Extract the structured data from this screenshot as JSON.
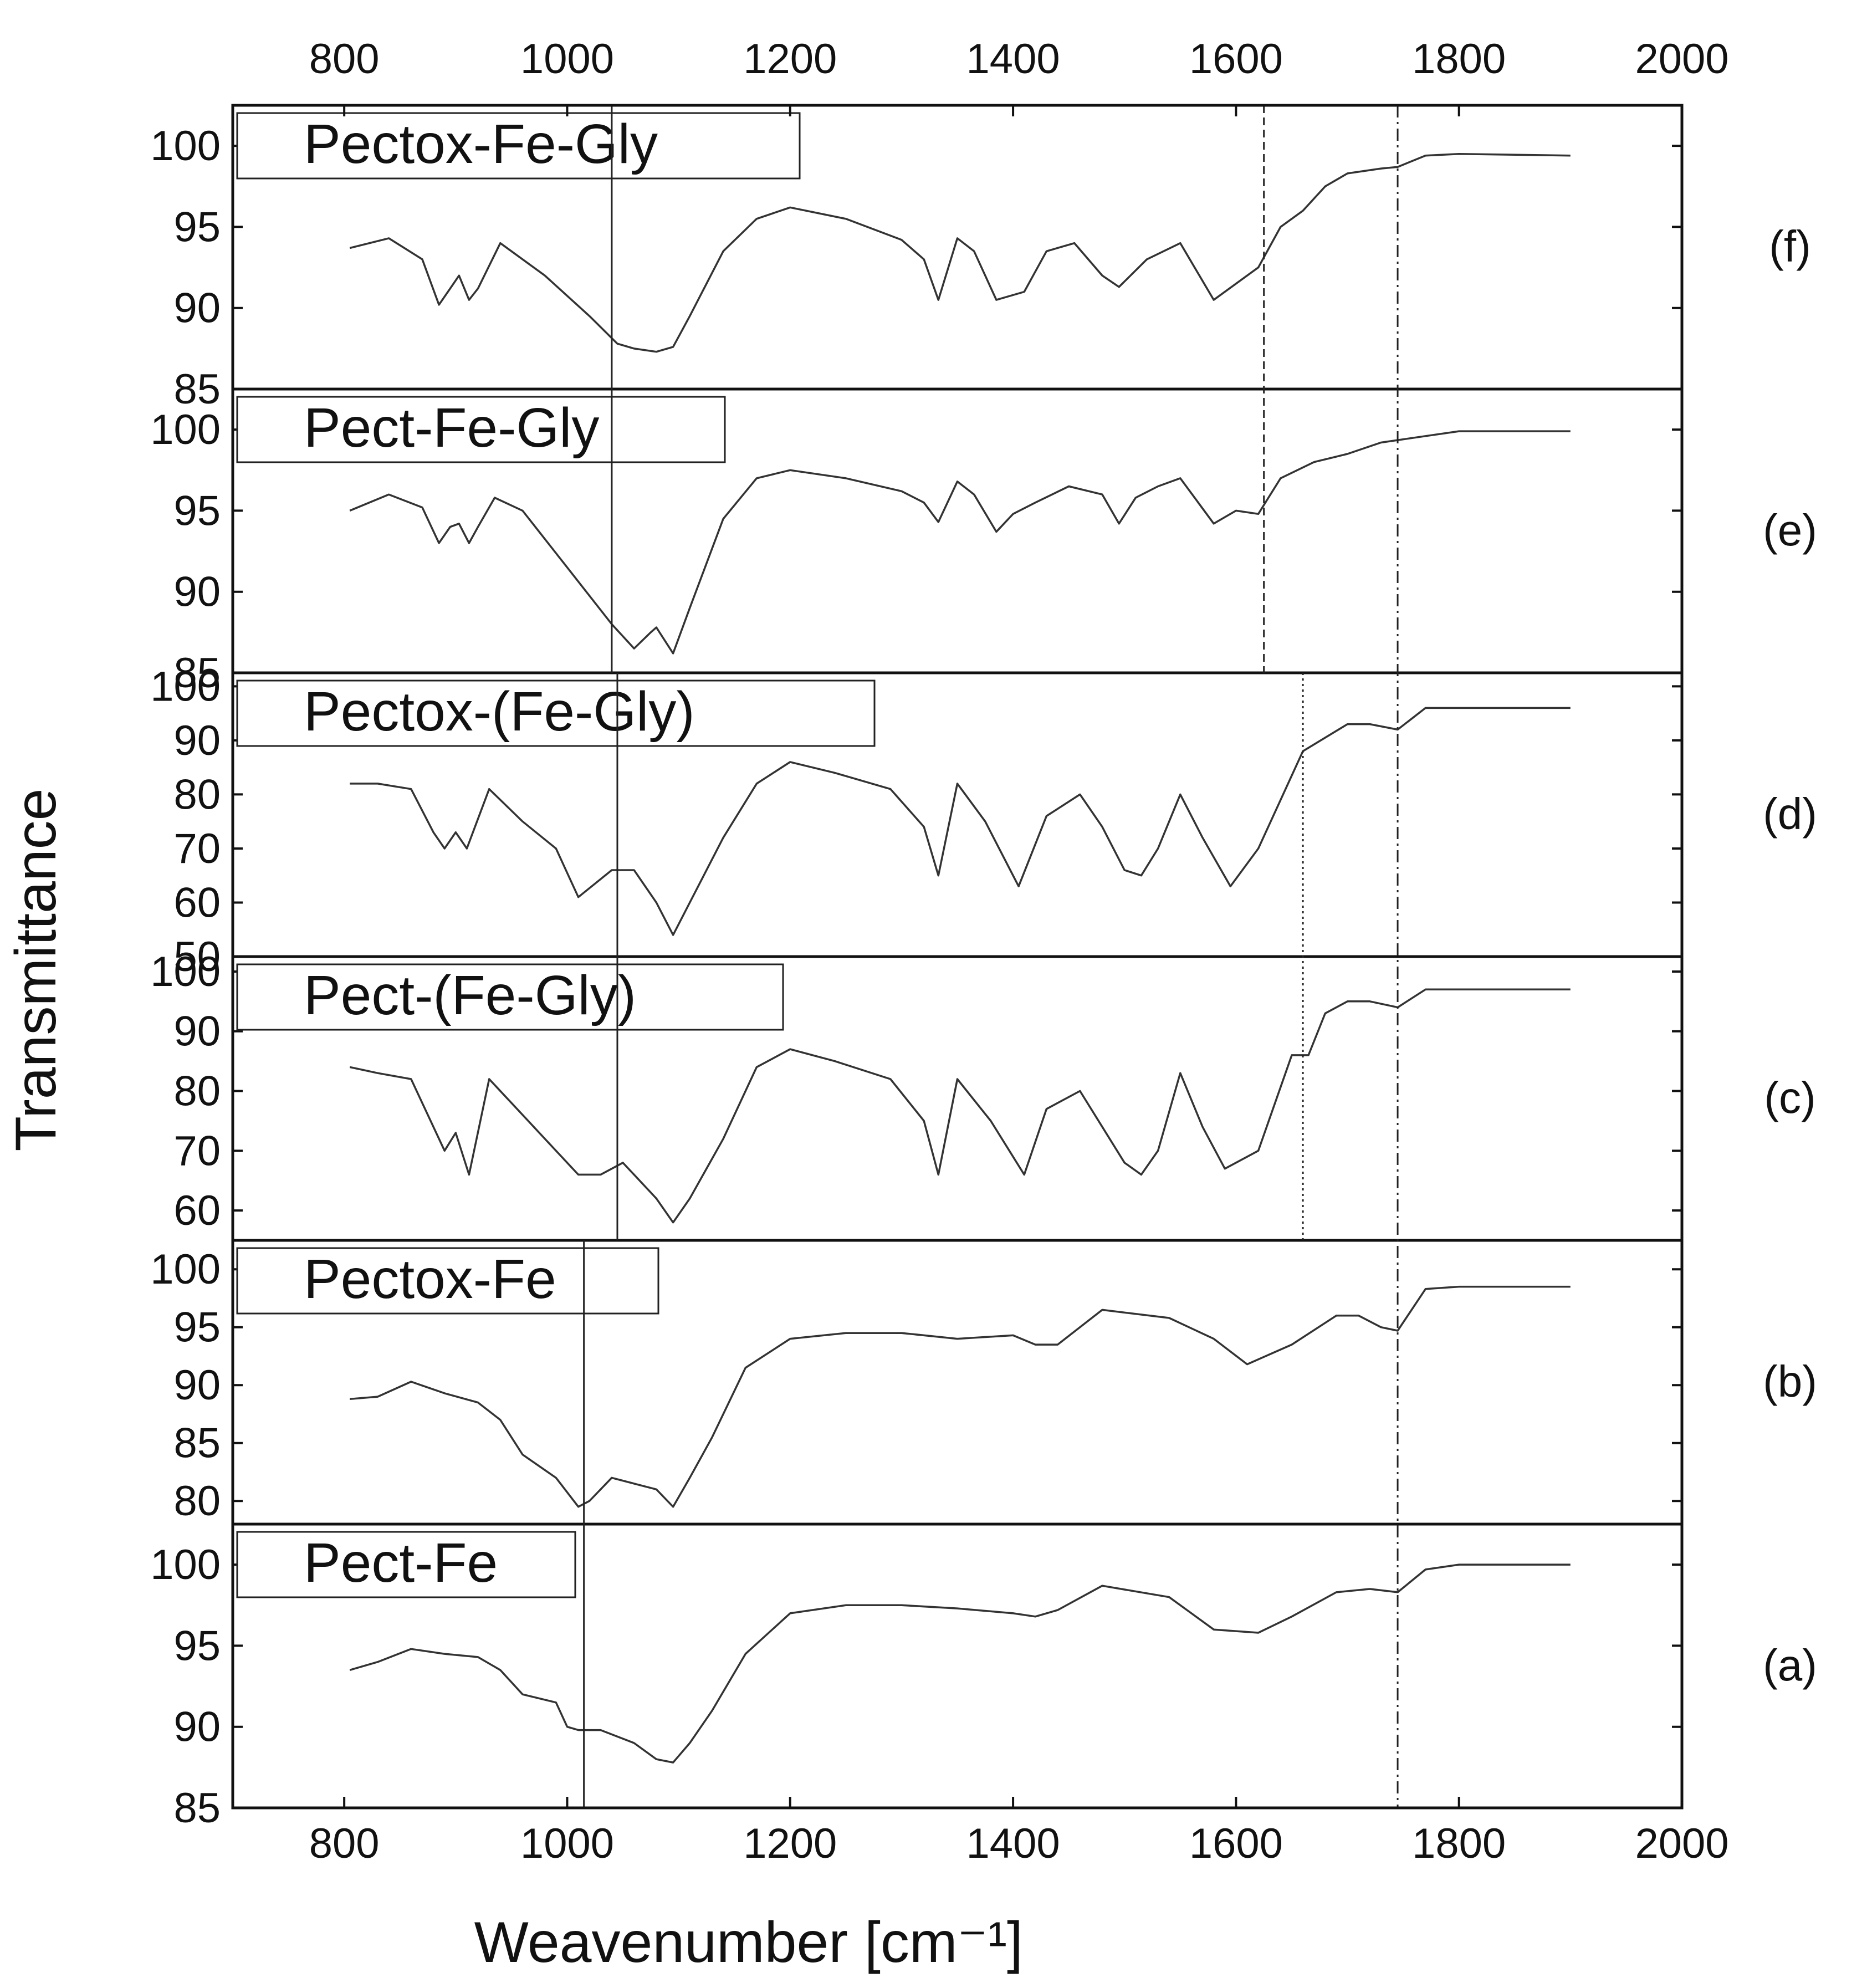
{
  "chart_data": {
    "type": "line",
    "title": "",
    "xlabel": "Weavenumber",
    "xlabel_unit": "[cm⁻¹]",
    "ylabel": "Transmittance",
    "xlim": [
      700,
      2000
    ],
    "xticks": [
      800,
      1000,
      1200,
      1400,
      1600,
      1800,
      2000
    ],
    "grid": false,
    "panels": [
      {
        "id": "f",
        "letter": "(f)",
        "name": "Pectox-Fe-Gly",
        "ylim": [
          85,
          102.5
        ],
        "yticks": [
          85,
          90,
          95,
          100
        ],
        "x": [
          805,
          840,
          870,
          885,
          895,
          903,
          912,
          920,
          940,
          980,
          1020,
          1045,
          1060,
          1080,
          1095,
          1110,
          1140,
          1170,
          1200,
          1250,
          1300,
          1320,
          1333,
          1350,
          1365,
          1385,
          1410,
          1430,
          1455,
          1480,
          1495,
          1520,
          1550,
          1580,
          1600,
          1620,
          1640,
          1660,
          1680,
          1700,
          1730,
          1745,
          1770,
          1800,
          1900
        ],
        "values": [
          93.7,
          94.3,
          93.0,
          90.2,
          91.2,
          92.0,
          90.5,
          91.2,
          94.0,
          92.0,
          89.5,
          87.8,
          87.5,
          87.3,
          87.6,
          89.5,
          93.5,
          95.5,
          96.2,
          95.5,
          94.2,
          93.0,
          90.5,
          94.3,
          93.5,
          90.5,
          91.0,
          93.5,
          94.0,
          92.0,
          91.3,
          93.0,
          94.0,
          90.5,
          91.5,
          92.5,
          95.0,
          96.0,
          97.5,
          98.3,
          98.6,
          98.7,
          99.4,
          99.5,
          99.4
        ]
      },
      {
        "id": "e",
        "letter": "(e)",
        "name": "Pect-Fe-Gly",
        "ylim": [
          85,
          102.5
        ],
        "yticks": [
          85,
          90,
          95,
          100
        ],
        "x": [
          805,
          840,
          870,
          885,
          895,
          903,
          912,
          920,
          935,
          960,
          1000,
          1040,
          1060,
          1075,
          1080,
          1095,
          1110,
          1140,
          1170,
          1200,
          1250,
          1300,
          1320,
          1333,
          1350,
          1365,
          1385,
          1400,
          1420,
          1450,
          1480,
          1495,
          1510,
          1530,
          1550,
          1580,
          1600,
          1620,
          1640,
          1670,
          1700,
          1730,
          1770,
          1800,
          1900
        ],
        "values": [
          95.0,
          96.0,
          95.2,
          93.0,
          94.0,
          94.2,
          93.0,
          94.0,
          95.8,
          95.0,
          91.5,
          88.0,
          86.5,
          87.5,
          87.8,
          86.2,
          89.0,
          94.5,
          97.0,
          97.5,
          97.0,
          96.2,
          95.5,
          94.3,
          96.8,
          96.0,
          93.7,
          94.8,
          95.5,
          96.5,
          96.0,
          94.2,
          95.8,
          96.5,
          97.0,
          94.2,
          95.0,
          94.8,
          97.0,
          98.0,
          98.5,
          99.2,
          99.6,
          99.9,
          99.9
        ]
      },
      {
        "id": "d",
        "letter": "(d)",
        "name": "Pectox-(Fe-Gly)",
        "ylim": [
          50,
          102.5
        ],
        "yticks": [
          50,
          60,
          70,
          80,
          90,
          100
        ],
        "x": [
          805,
          830,
          860,
          880,
          890,
          900,
          910,
          930,
          960,
          990,
          1010,
          1040,
          1060,
          1080,
          1095,
          1110,
          1140,
          1170,
          1200,
          1240,
          1290,
          1320,
          1333,
          1350,
          1375,
          1405,
          1430,
          1460,
          1480,
          1500,
          1515,
          1530,
          1550,
          1570,
          1595,
          1620,
          1660,
          1700,
          1720,
          1745,
          1770,
          1900
        ],
        "values": [
          82,
          82,
          81,
          73,
          70,
          73,
          70,
          81,
          75,
          70,
          61,
          66,
          66,
          60,
          54,
          60,
          72,
          82,
          86,
          84,
          81,
          74,
          65,
          82,
          75,
          63,
          76,
          80,
          74,
          66,
          65,
          70,
          80,
          72,
          63,
          70,
          88,
          93,
          93,
          92,
          96,
          96
        ]
      },
      {
        "id": "c",
        "letter": "(c)",
        "name": "Pect-(Fe-Gly)",
        "ylim": [
          55,
          102.5
        ],
        "yticks": [
          60,
          70,
          80,
          90,
          100
        ],
        "x": [
          805,
          830,
          860,
          880,
          890,
          900,
          912,
          930,
          960,
          990,
          1010,
          1030,
          1050,
          1080,
          1095,
          1110,
          1140,
          1170,
          1200,
          1240,
          1290,
          1320,
          1333,
          1350,
          1380,
          1410,
          1430,
          1460,
          1480,
          1500,
          1515,
          1530,
          1550,
          1570,
          1590,
          1620,
          1650,
          1665,
          1680,
          1700,
          1720,
          1745,
          1770,
          1900
        ],
        "values": [
          84,
          83,
          82,
          74,
          70,
          73,
          66,
          82,
          76,
          70,
          66,
          66,
          68,
          62,
          58,
          62,
          72,
          84,
          87,
          85,
          82,
          75,
          66,
          82,
          75,
          66,
          77,
          80,
          74,
          68,
          66,
          70,
          83,
          74,
          67,
          70,
          86,
          86,
          93,
          95,
          95,
          94,
          97,
          97
        ]
      },
      {
        "id": "b",
        "letter": "(b)",
        "name": "Pectox-Fe",
        "ylim": [
          78,
          102.5
        ],
        "yticks": [
          80,
          85,
          90,
          95,
          100
        ],
        "x": [
          805,
          830,
          860,
          890,
          920,
          940,
          960,
          990,
          1010,
          1020,
          1040,
          1060,
          1080,
          1095,
          1110,
          1130,
          1160,
          1200,
          1250,
          1300,
          1350,
          1400,
          1420,
          1440,
          1480,
          1540,
          1580,
          1610,
          1650,
          1690,
          1710,
          1730,
          1745,
          1770,
          1800,
          1900
        ],
        "values": [
          88.8,
          89.0,
          90.3,
          89.3,
          88.5,
          87.0,
          84.0,
          82.0,
          79.5,
          80.0,
          82.0,
          81.5,
          81.0,
          79.5,
          82.0,
          85.5,
          91.5,
          94.0,
          94.5,
          94.5,
          94.0,
          94.3,
          93.5,
          93.5,
          96.5,
          95.8,
          94.0,
          91.8,
          93.5,
          96.0,
          96.0,
          95.0,
          94.7,
          98.3,
          98.5,
          98.5
        ]
      },
      {
        "id": "a",
        "letter": "(a)",
        "name": "Pect-Fe",
        "ylim": [
          85,
          102.5
        ],
        "yticks": [
          85,
          90,
          95,
          100
        ],
        "x": [
          805,
          830,
          860,
          890,
          920,
          940,
          960,
          990,
          1000,
          1010,
          1030,
          1060,
          1080,
          1095,
          1110,
          1130,
          1160,
          1200,
          1250,
          1300,
          1350,
          1400,
          1420,
          1440,
          1480,
          1540,
          1580,
          1620,
          1650,
          1690,
          1720,
          1745,
          1770,
          1800,
          1900
        ],
        "values": [
          93.5,
          94.0,
          94.8,
          94.5,
          94.3,
          93.5,
          92.0,
          91.5,
          90.0,
          89.8,
          89.8,
          89.0,
          88.0,
          87.8,
          89.0,
          91.0,
          94.5,
          97.0,
          97.5,
          97.5,
          97.3,
          97.0,
          96.8,
          97.2,
          98.7,
          98.0,
          96.0,
          95.8,
          96.8,
          98.3,
          98.5,
          98.3,
          99.7,
          100.0,
          100.0
        ]
      }
    ],
    "reference_lines": [
      {
        "x": 1745,
        "style": "dash-dot",
        "panels": [
          "f",
          "e",
          "d",
          "c",
          "b",
          "a"
        ]
      },
      {
        "x": 1625,
        "style": "dashed",
        "panels": [
          "f",
          "e"
        ]
      },
      {
        "x": 1660,
        "style": "dotted",
        "panels": [
          "d",
          "c"
        ]
      },
      {
        "x": 1040,
        "style": "solid",
        "panels": [
          "f",
          "e"
        ]
      },
      {
        "x": 1045,
        "style": "solid",
        "panels": [
          "d",
          "c"
        ]
      },
      {
        "x": 1015,
        "style": "solid",
        "panels": [
          "b",
          "a"
        ]
      }
    ]
  }
}
